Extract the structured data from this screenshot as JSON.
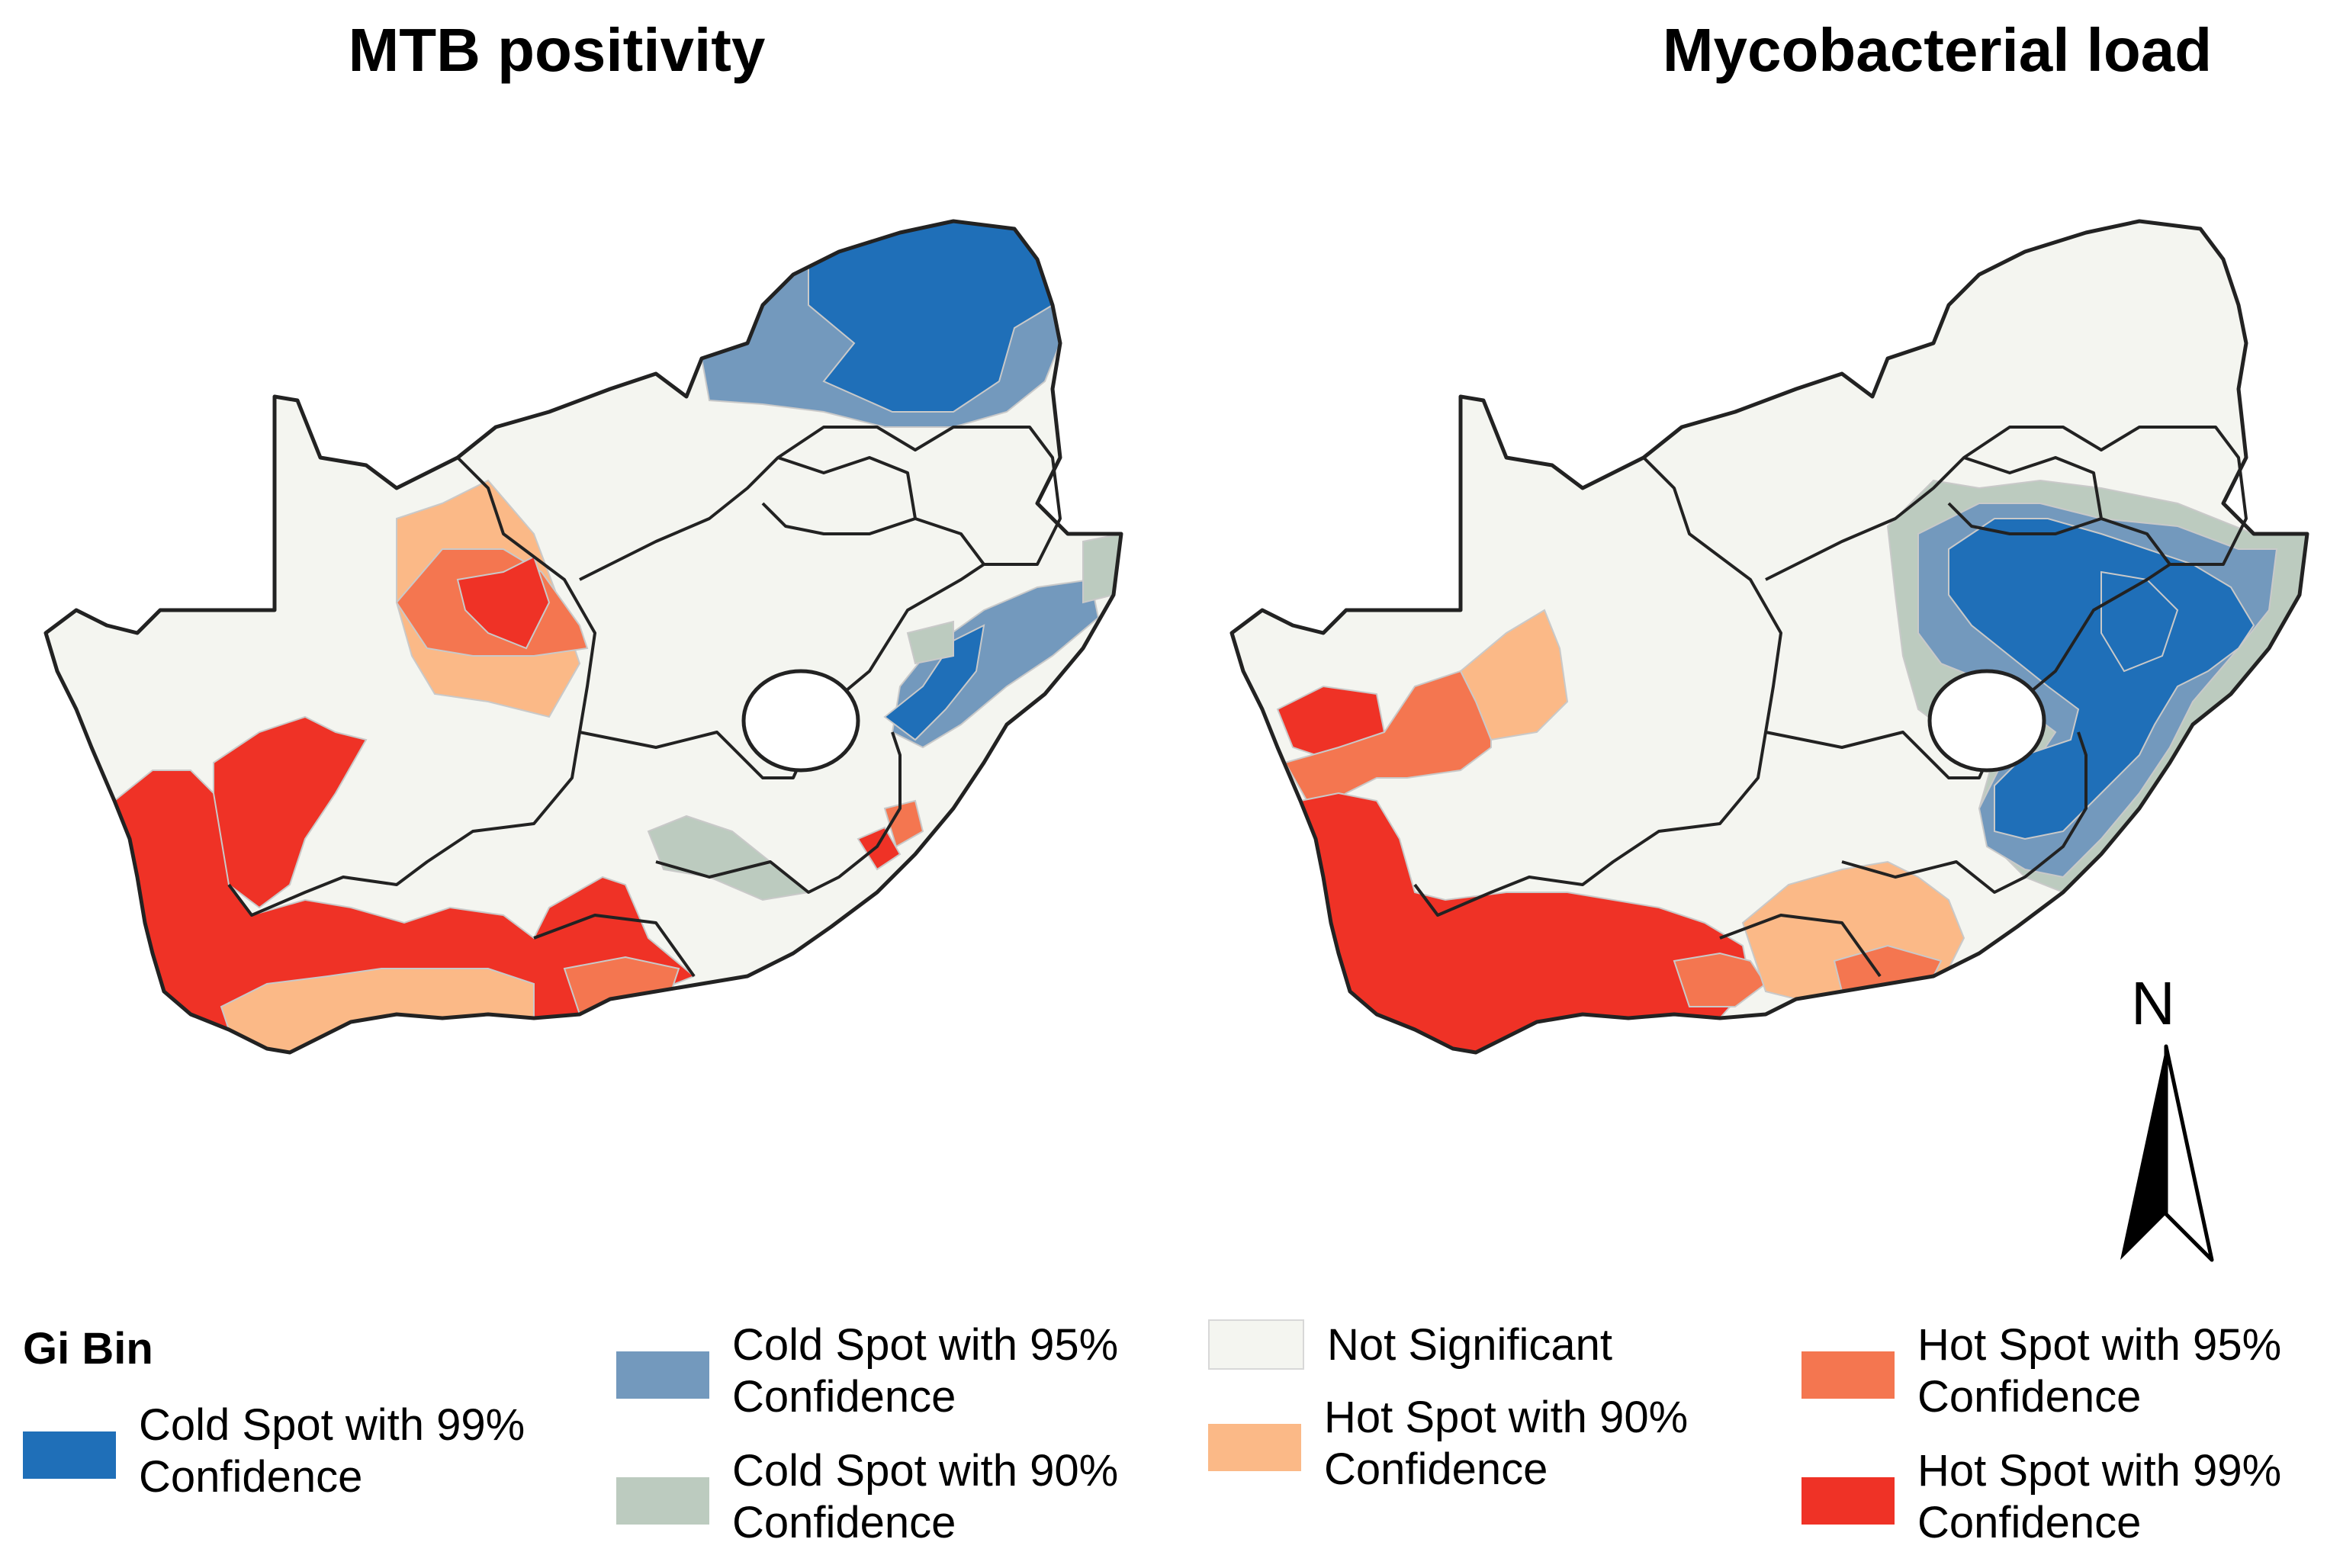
{
  "titles": {
    "left": "MTB positivity",
    "right": "Mycobacterial load"
  },
  "legend": {
    "title": "Gi Bin",
    "items": [
      {
        "key": "cold99",
        "label": "Cold Spot with 99%\nConfidence",
        "color": "#1f6fb8"
      },
      {
        "key": "cold95",
        "label": "Cold Spot with 95%\nConfidence",
        "color": "#7399bd"
      },
      {
        "key": "cold90",
        "label": "Cold Spot with 90%\nConfidence",
        "color": "#bccbbf"
      },
      {
        "key": "notsig",
        "label": "Not Significant",
        "color": "#f4f5f0"
      },
      {
        "key": "hot90",
        "label": "Hot Spot with 90%\nConfidence",
        "color": "#fbb987"
      },
      {
        "key": "hot95",
        "label": "Hot Spot with 95%\nConfidence",
        "color": "#f47650"
      },
      {
        "key": "hot99",
        "label": "Hot Spot with 99%\nConfidence",
        "color": "#ef3226"
      }
    ]
  },
  "north_arrow": {
    "label": "N"
  }
}
